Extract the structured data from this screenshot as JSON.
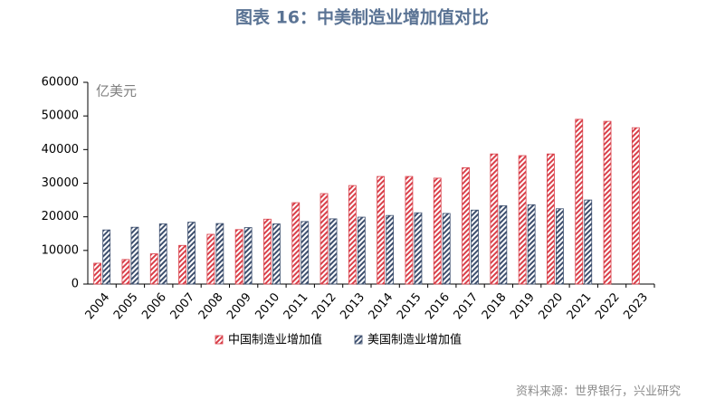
{
  "chart_data": {
    "type": "bar",
    "title": "图表 16：中美制造业增加值对比",
    "y_label": "亿美元",
    "source": "资料来源：世界银行，兴业研究",
    "categories": [
      "2004",
      "2005",
      "2006",
      "2007",
      "2008",
      "2009",
      "2010",
      "2011",
      "2012",
      "2013",
      "2014",
      "2015",
      "2016",
      "2017",
      "2018",
      "2019",
      "2020",
      "2021",
      "2022",
      "2023"
    ],
    "series": [
      {
        "name": "中国制造业增加值",
        "color": "#d9404a",
        "values": [
          6200,
          7300,
          9000,
          11500,
          14800,
          16200,
          19300,
          24200,
          26900,
          29300,
          32000,
          32000,
          31500,
          34600,
          38700,
          38200,
          38700,
          49000,
          48400,
          46500
        ]
      },
      {
        "name": "美国制造业增加值",
        "color": "#3d4f6e",
        "values": [
          16100,
          16900,
          17900,
          18400,
          18000,
          16800,
          17900,
          18600,
          19400,
          19900,
          20400,
          21200,
          21000,
          22000,
          23300,
          23600,
          22400,
          25000,
          null,
          null
        ]
      }
    ],
    "ylim": [
      0,
      60000
    ],
    "yticks": [
      0,
      10000,
      20000,
      30000,
      40000,
      50000,
      60000
    ],
    "grid": false
  }
}
